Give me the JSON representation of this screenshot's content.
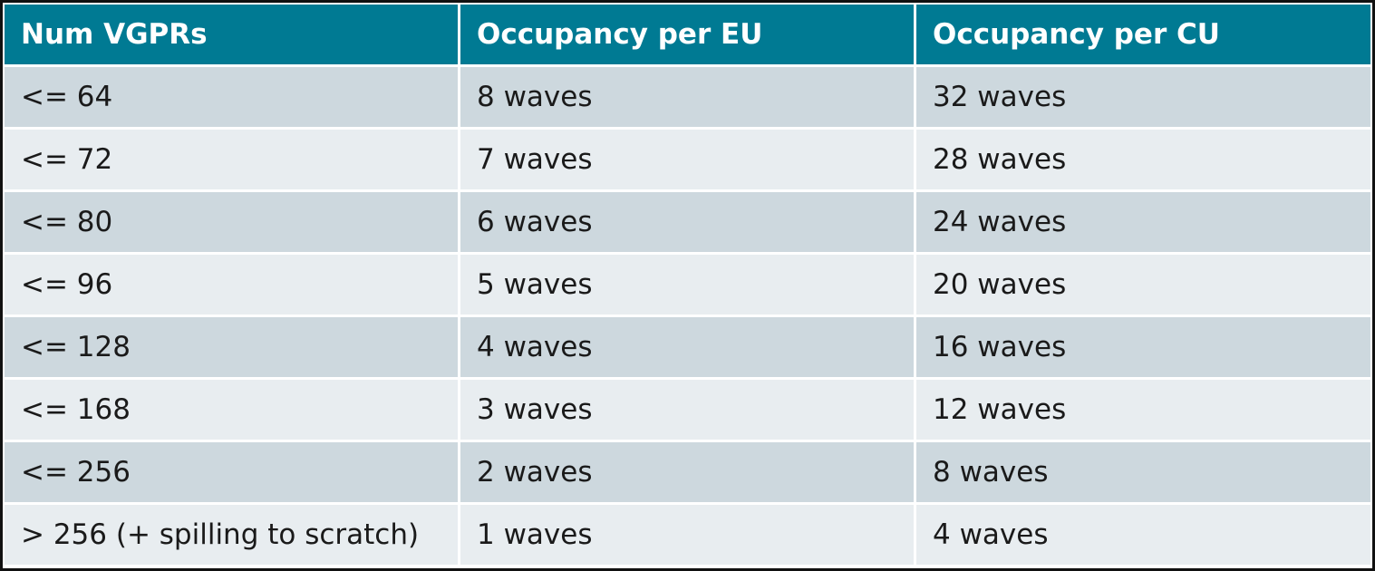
{
  "table": {
    "header": [
      "Num VGPRs",
      "Occupancy per EU",
      "Occupancy per CU"
    ],
    "rows": [
      [
        "<= 64",
        "8 waves",
        "32 waves"
      ],
      [
        "<= 72",
        "7 waves",
        "28 waves"
      ],
      [
        "<= 80",
        "6 waves",
        "24 waves"
      ],
      [
        "<= 96",
        "5 waves",
        "20 waves"
      ],
      [
        "<= 128",
        "4 waves",
        "16 waves"
      ],
      [
        "<= 168",
        "3 waves",
        "12 waves"
      ],
      [
        "<= 256",
        "2 waves",
        "8 waves"
      ],
      [
        "> 256 (+ spilling to scratch)",
        "1 waves",
        "4 waves"
      ]
    ]
  }
}
